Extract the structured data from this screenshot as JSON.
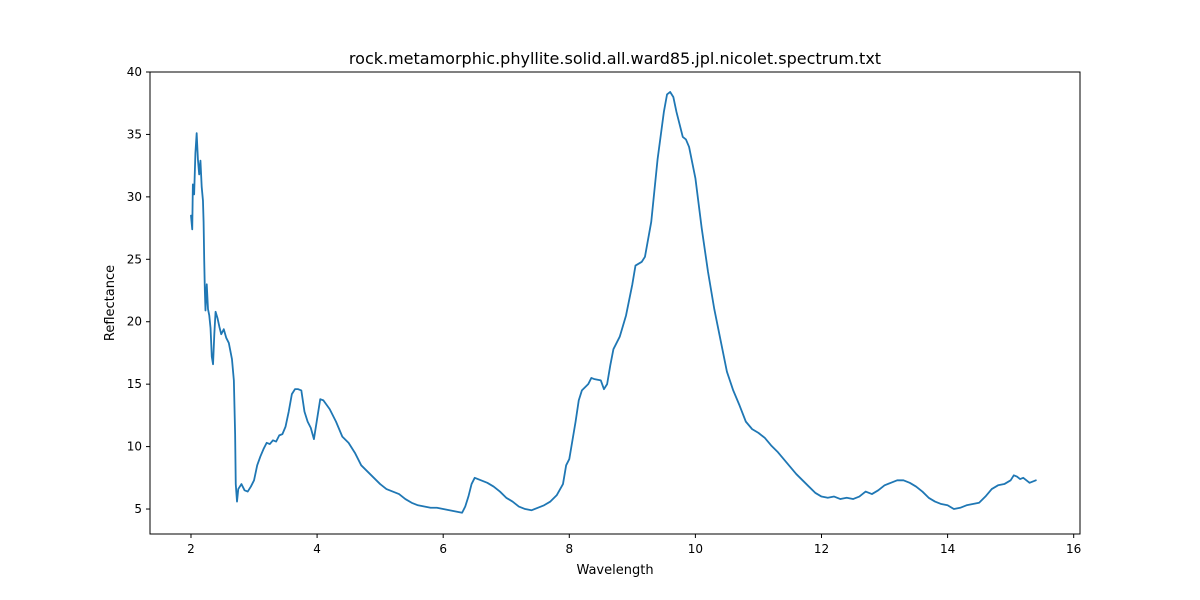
{
  "chart_data": {
    "type": "line",
    "title": "rock.metamorphic.phyllite.solid.all.ward85.jpl.nicolet.spectrum.txt",
    "xlabel": "Wavelength",
    "ylabel": "Reflectance",
    "xlim": [
      1.35,
      16.1
    ],
    "ylim": [
      3.0,
      40.0
    ],
    "xticks": [
      2,
      4,
      6,
      8,
      10,
      12,
      14,
      16
    ],
    "yticks": [
      5,
      10,
      15,
      20,
      25,
      30,
      35,
      40
    ],
    "grid": false,
    "series": [
      {
        "color": "#1f77b4",
        "points": [
          [
            2.0,
            28.5
          ],
          [
            2.02,
            27.4
          ],
          [
            2.03,
            31.0
          ],
          [
            2.05,
            30.2
          ],
          [
            2.07,
            33.5
          ],
          [
            2.09,
            35.1
          ],
          [
            2.11,
            33.0
          ],
          [
            2.13,
            31.8
          ],
          [
            2.15,
            32.9
          ],
          [
            2.17,
            30.8
          ],
          [
            2.19,
            29.7
          ],
          [
            2.2,
            28.0
          ],
          [
            2.21,
            24.9
          ],
          [
            2.22,
            22.5
          ],
          [
            2.23,
            20.9
          ],
          [
            2.25,
            23.0
          ],
          [
            2.27,
            21.0
          ],
          [
            2.29,
            20.5
          ],
          [
            2.31,
            19.5
          ],
          [
            2.33,
            17.2
          ],
          [
            2.35,
            16.6
          ],
          [
            2.37,
            19.0
          ],
          [
            2.39,
            20.8
          ],
          [
            2.42,
            20.3
          ],
          [
            2.45,
            19.6
          ],
          [
            2.48,
            19.0
          ],
          [
            2.52,
            19.4
          ],
          [
            2.56,
            18.7
          ],
          [
            2.6,
            18.3
          ],
          [
            2.65,
            17.0
          ],
          [
            2.68,
            15.3
          ],
          [
            2.7,
            11.0
          ],
          [
            2.71,
            7.0
          ],
          [
            2.73,
            5.6
          ],
          [
            2.75,
            6.6
          ],
          [
            2.8,
            7.0
          ],
          [
            2.85,
            6.5
          ],
          [
            2.9,
            6.4
          ],
          [
            2.95,
            6.8
          ],
          [
            3.0,
            7.3
          ],
          [
            3.05,
            8.5
          ],
          [
            3.1,
            9.2
          ],
          [
            3.15,
            9.8
          ],
          [
            3.2,
            10.3
          ],
          [
            3.25,
            10.2
          ],
          [
            3.3,
            10.5
          ],
          [
            3.35,
            10.4
          ],
          [
            3.4,
            10.9
          ],
          [
            3.45,
            11.0
          ],
          [
            3.5,
            11.6
          ],
          [
            3.55,
            12.8
          ],
          [
            3.6,
            14.2
          ],
          [
            3.65,
            14.6
          ],
          [
            3.7,
            14.6
          ],
          [
            3.75,
            14.5
          ],
          [
            3.8,
            12.8
          ],
          [
            3.85,
            12.0
          ],
          [
            3.9,
            11.5
          ],
          [
            3.95,
            10.6
          ],
          [
            4.0,
            12.2
          ],
          [
            4.05,
            13.8
          ],
          [
            4.1,
            13.7
          ],
          [
            4.2,
            13.0
          ],
          [
            4.3,
            12.0
          ],
          [
            4.4,
            10.8
          ],
          [
            4.5,
            10.3
          ],
          [
            4.6,
            9.5
          ],
          [
            4.7,
            8.5
          ],
          [
            4.8,
            8.0
          ],
          [
            4.9,
            7.5
          ],
          [
            5.0,
            7.0
          ],
          [
            5.1,
            6.6
          ],
          [
            5.2,
            6.4
          ],
          [
            5.3,
            6.2
          ],
          [
            5.4,
            5.8
          ],
          [
            5.5,
            5.5
          ],
          [
            5.6,
            5.3
          ],
          [
            5.7,
            5.2
          ],
          [
            5.8,
            5.1
          ],
          [
            5.9,
            5.1
          ],
          [
            6.0,
            5.0
          ],
          [
            6.1,
            4.9
          ],
          [
            6.2,
            4.8
          ],
          [
            6.3,
            4.7
          ],
          [
            6.35,
            5.2
          ],
          [
            6.4,
            6.0
          ],
          [
            6.45,
            7.0
          ],
          [
            6.5,
            7.5
          ],
          [
            6.6,
            7.3
          ],
          [
            6.7,
            7.1
          ],
          [
            6.8,
            6.8
          ],
          [
            6.9,
            6.4
          ],
          [
            7.0,
            5.9
          ],
          [
            7.1,
            5.6
          ],
          [
            7.2,
            5.2
          ],
          [
            7.3,
            5.0
          ],
          [
            7.4,
            4.9
          ],
          [
            7.5,
            5.1
          ],
          [
            7.6,
            5.3
          ],
          [
            7.7,
            5.6
          ],
          [
            7.8,
            6.1
          ],
          [
            7.9,
            7.0
          ],
          [
            7.95,
            8.5
          ],
          [
            8.0,
            9.0
          ],
          [
            8.05,
            10.5
          ],
          [
            8.1,
            12.0
          ],
          [
            8.15,
            13.7
          ],
          [
            8.2,
            14.5
          ],
          [
            8.3,
            15.0
          ],
          [
            8.35,
            15.5
          ],
          [
            8.4,
            15.4
          ],
          [
            8.5,
            15.3
          ],
          [
            8.55,
            14.6
          ],
          [
            8.6,
            15.0
          ],
          [
            8.65,
            16.5
          ],
          [
            8.7,
            17.8
          ],
          [
            8.8,
            18.8
          ],
          [
            8.9,
            20.5
          ],
          [
            9.0,
            23.0
          ],
          [
            9.05,
            24.5
          ],
          [
            9.15,
            24.8
          ],
          [
            9.2,
            25.2
          ],
          [
            9.3,
            28.0
          ],
          [
            9.4,
            33.0
          ],
          [
            9.5,
            36.8
          ],
          [
            9.55,
            38.2
          ],
          [
            9.6,
            38.4
          ],
          [
            9.65,
            38.0
          ],
          [
            9.7,
            36.8
          ],
          [
            9.75,
            35.8
          ],
          [
            9.8,
            34.8
          ],
          [
            9.85,
            34.6
          ],
          [
            9.9,
            34.0
          ],
          [
            10.0,
            31.5
          ],
          [
            10.05,
            29.5
          ],
          [
            10.1,
            27.5
          ],
          [
            10.2,
            24.0
          ],
          [
            10.3,
            21.0
          ],
          [
            10.4,
            18.5
          ],
          [
            10.5,
            16.0
          ],
          [
            10.6,
            14.5
          ],
          [
            10.7,
            13.3
          ],
          [
            10.8,
            12.0
          ],
          [
            10.9,
            11.4
          ],
          [
            11.0,
            11.1
          ],
          [
            11.1,
            10.7
          ],
          [
            11.2,
            10.1
          ],
          [
            11.3,
            9.6
          ],
          [
            11.4,
            9.0
          ],
          [
            11.5,
            8.4
          ],
          [
            11.6,
            7.8
          ],
          [
            11.7,
            7.3
          ],
          [
            11.8,
            6.8
          ],
          [
            11.9,
            6.3
          ],
          [
            12.0,
            6.0
          ],
          [
            12.1,
            5.9
          ],
          [
            12.2,
            6.0
          ],
          [
            12.3,
            5.8
          ],
          [
            12.4,
            5.9
          ],
          [
            12.5,
            5.8
          ],
          [
            12.6,
            6.0
          ],
          [
            12.7,
            6.4
          ],
          [
            12.8,
            6.2
          ],
          [
            12.9,
            6.5
          ],
          [
            13.0,
            6.9
          ],
          [
            13.1,
            7.1
          ],
          [
            13.2,
            7.3
          ],
          [
            13.3,
            7.3
          ],
          [
            13.4,
            7.1
          ],
          [
            13.5,
            6.8
          ],
          [
            13.6,
            6.4
          ],
          [
            13.7,
            5.9
          ],
          [
            13.8,
            5.6
          ],
          [
            13.9,
            5.4
          ],
          [
            14.0,
            5.3
          ],
          [
            14.1,
            5.0
          ],
          [
            14.2,
            5.1
          ],
          [
            14.3,
            5.3
          ],
          [
            14.4,
            5.4
          ],
          [
            14.5,
            5.5
          ],
          [
            14.6,
            6.0
          ],
          [
            14.7,
            6.6
          ],
          [
            14.8,
            6.9
          ],
          [
            14.9,
            7.0
          ],
          [
            15.0,
            7.3
          ],
          [
            15.05,
            7.7
          ],
          [
            15.1,
            7.6
          ],
          [
            15.15,
            7.4
          ],
          [
            15.2,
            7.5
          ],
          [
            15.25,
            7.3
          ],
          [
            15.3,
            7.1
          ],
          [
            15.35,
            7.2
          ],
          [
            15.4,
            7.3
          ]
        ]
      }
    ]
  }
}
